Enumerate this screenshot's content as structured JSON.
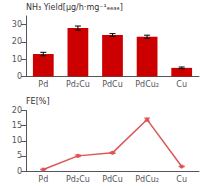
{
  "chart_data": [
    {
      "type": "bar",
      "categories": [
        "Pd",
        "Pd₂Cu",
        "PdCu",
        "PdCu₂",
        "Cu"
      ],
      "values": [
        13,
        28,
        24,
        23,
        5
      ],
      "errors": [
        1.0,
        1.2,
        0.8,
        0.9,
        0.5
      ],
      "color": "#cc0000",
      "ylabel": "NH₃ Yield[μg/h·mg⁻¹ₑₑₐₑ]",
      "ylim": [
        0,
        35
      ],
      "yticks": [
        0,
        10,
        20,
        30
      ]
    },
    {
      "type": "line",
      "categories": [
        "Pd",
        "Pd₂Cu",
        "PdCu",
        "PdCu₂",
        "Cu"
      ],
      "values": [
        0.5,
        5,
        6,
        17,
        1.5
      ],
      "errors": [
        0.1,
        0.3,
        0.2,
        0.5,
        0.1
      ],
      "color": "#dd5555",
      "marker": "o",
      "ylabel": "FE[%]",
      "ylim": [
        0,
        20
      ],
      "yticks": [
        0,
        5,
        10,
        15,
        20
      ]
    }
  ]
}
